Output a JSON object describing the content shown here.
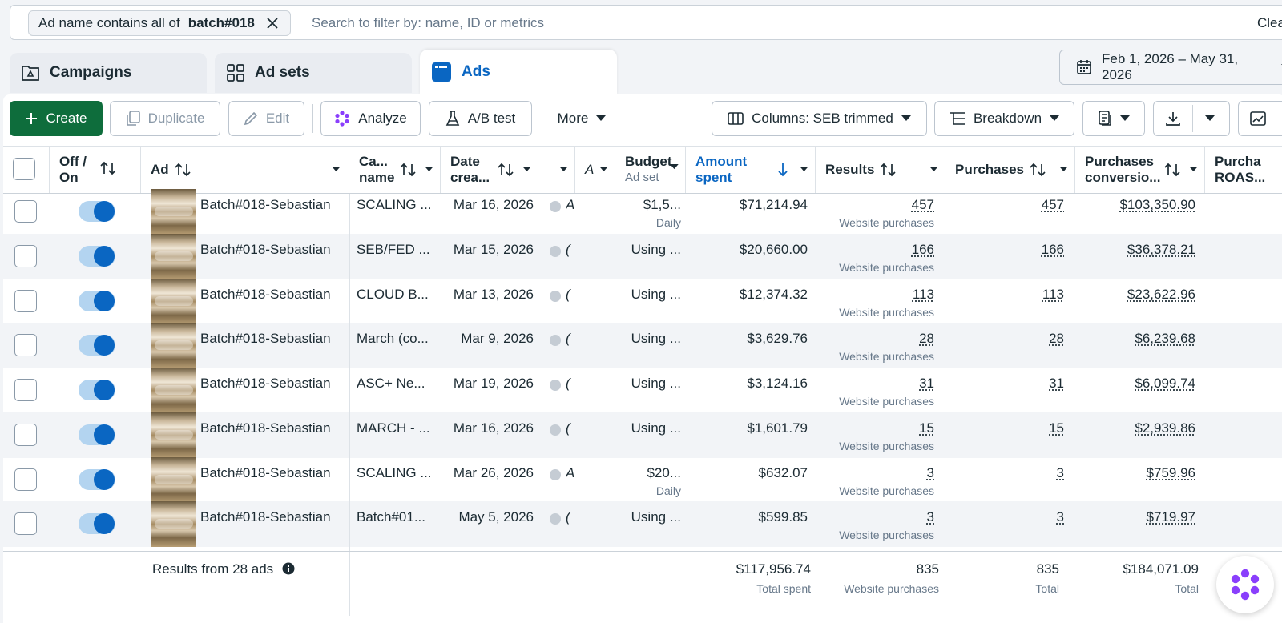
{
  "filter": {
    "chip_label": "Ad name contains all of",
    "chip_value": "batch#018",
    "search_placeholder": "Search to filter by: name, ID or metrics",
    "clear_label": "Clea"
  },
  "tabs": [
    {
      "label": "Campaigns"
    },
    {
      "label": "Ad sets"
    },
    {
      "label": "Ads"
    }
  ],
  "date_range": "Feb 1, 2026 – May 31, 2026",
  "toolbar": {
    "create": "Create",
    "duplicate": "Duplicate",
    "edit": "Edit",
    "analyze": "Analyze",
    "ab_test": "A/B test",
    "more": "More",
    "columns": "Columns: SEB trimmed",
    "breakdown": "Breakdown"
  },
  "columns": {
    "offon_1": "Off /",
    "offon_2": "On",
    "ad": "Ad",
    "campaign_1": "Ca...",
    "campaign_2": "name",
    "date_1": "Date",
    "date_2": "crea...",
    "col_a": "A",
    "budget": "Budget",
    "budget_sub": "Ad set",
    "amount_1": "Amount",
    "amount_2": "spent",
    "results": "Results",
    "purchases": "Purchases",
    "pconv_1": "Purchases",
    "pconv_2": "conversio...",
    "proas_1": "Purcha",
    "proas_2": "ROAS..."
  },
  "rows": [
    {
      "name": "Batch#018-Sebastian",
      "campaign": "SCALING ...",
      "date": "Mar 16, 2026",
      "status": "A",
      "budget": "$1,5...",
      "budget_sub": "Daily",
      "spent": "$71,214.94",
      "results": "457",
      "results_sub": "Website purchases",
      "purchases": "457",
      "conv": "$103,350.90"
    },
    {
      "name": "Batch#018-Sebastian",
      "campaign": "SEB/FED ...",
      "date": "Mar 15, 2026",
      "status": "(",
      "budget": "Using ...",
      "budget_sub": "",
      "spent": "$20,660.00",
      "results": "166",
      "results_sub": "Website purchases",
      "purchases": "166",
      "conv": "$36,378.21"
    },
    {
      "name": "Batch#018-Sebastian",
      "campaign": "CLOUD B...",
      "date": "Mar 13, 2026",
      "status": "(",
      "budget": "Using ...",
      "budget_sub": "",
      "spent": "$12,374.32",
      "results": "113",
      "results_sub": "Website purchases",
      "purchases": "113",
      "conv": "$23,622.96"
    },
    {
      "name": "Batch#018-Sebastian",
      "campaign": "March (co...",
      "date": "Mar 9, 2026",
      "status": "(",
      "budget": "Using ...",
      "budget_sub": "",
      "spent": "$3,629.76",
      "results": "28",
      "results_sub": "Website purchases",
      "purchases": "28",
      "conv": "$6,239.68"
    },
    {
      "name": "Batch#018-Sebastian",
      "campaign": "ASC+ Ne...",
      "date": "Mar 19, 2026",
      "status": "(",
      "budget": "Using ...",
      "budget_sub": "",
      "spent": "$3,124.16",
      "results": "31",
      "results_sub": "Website purchases",
      "purchases": "31",
      "conv": "$6,099.74"
    },
    {
      "name": "Batch#018-Sebastian",
      "campaign": "MARCH - ...",
      "date": "Mar 16, 2026",
      "status": "(",
      "budget": "Using ...",
      "budget_sub": "",
      "spent": "$1,601.79",
      "results": "15",
      "results_sub": "Website purchases",
      "purchases": "15",
      "conv": "$2,939.86"
    },
    {
      "name": "Batch#018-Sebastian",
      "campaign": "SCALING ...",
      "date": "Mar 26, 2026",
      "status": "A",
      "budget": "$20...",
      "budget_sub": "Daily",
      "spent": "$632.07",
      "results": "3",
      "results_sub": "Website purchases",
      "purchases": "3",
      "conv": "$759.96"
    },
    {
      "name": "Batch#018-Sebastian",
      "campaign": "Batch#01...",
      "date": "May 5, 2026",
      "status": "(",
      "budget": "Using ...",
      "budget_sub": "",
      "spent": "$599.85",
      "results": "3",
      "results_sub": "Website purchases",
      "purchases": "3",
      "conv": "$719.97"
    }
  ],
  "footer": {
    "results_from": "Results from 28 ads",
    "spent": "$117,956.74",
    "spent_sub": "Total spent",
    "results": "835",
    "results_sub": "Website purchases",
    "purchases": "835",
    "purchases_sub": "Total",
    "conv": "$184,071.09",
    "conv_sub": "Total"
  },
  "colors": {
    "accent": "#0a66c2",
    "create": "#0e6d3c",
    "analyze": "#8a3ffc"
  }
}
